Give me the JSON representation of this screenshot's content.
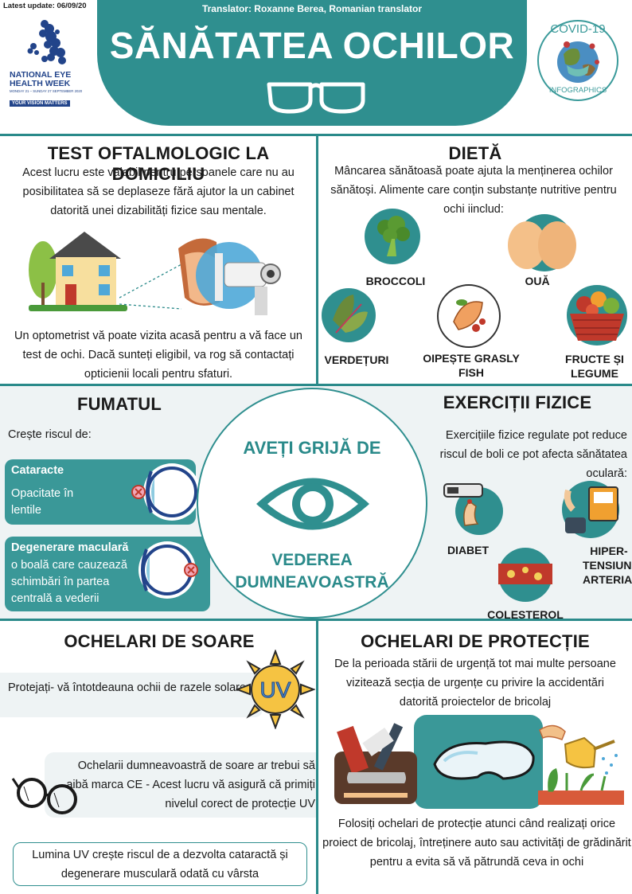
{
  "header": {
    "update": "Latest update: 06/09/20",
    "translator": "Translator: Roxanne Berea, Romanian translator",
    "title": "SĂNĂTATEA OCHILOR",
    "logo_left": {
      "line1": "NATIONAL EYE",
      "line2": "HEALTH WEEK",
      "dates": "MONDAY 21 – SUNDAY 27 SEPTEMBER 2020",
      "tagline": "YOUR VISION MATTERS"
    },
    "logo_right": {
      "top": "COVID-19",
      "bottom": "INFOGRAPHICS"
    }
  },
  "home_test": {
    "title": "TEST OFTALMOLOGIC LA DOMICILIU",
    "text1": "Acest lucru este valabil pentru persoanele  care nu au posibilitatea  să se deplaseze  fără ajutor la un cabinet datorită unei dizabilități fizice sau mentale.",
    "text2": "Un optometrist vă poate vizita acasă pentru  a vă face un test de ochi. Dacă sunteți eligibil,  va rog să contactați opticienii  locali pentru  sfaturi."
  },
  "diet": {
    "title": "DIETĂ",
    "text": "Mâncarea sănătoasă poate ajuta la menținerea ochilor sănătoși. Alimente care conțin substanțe nutritive pentru ochi iinclud:",
    "items": [
      "BROCCOLI",
      "OUĂ",
      "VERDEȚURI",
      "OIPEȘTE GRASLY FISH",
      "FRUCTE ȘI LEGUME"
    ]
  },
  "smoking": {
    "title": "FUMATUL",
    "intro": "Crește riscul de:",
    "cataract_title": "Cataracte",
    "cataract_text": "Opacitate în lentile",
    "macular_title": "Degenerare maculară",
    "macular_text": "o boală care cauzează schimbări în partea centrală a vederii"
  },
  "center": {
    "top": "AVEȚI GRIJĂ DE",
    "bottom": "VEDEREA DUMNEAVOASTRĂ"
  },
  "exercise": {
    "title": "EXERCIȚII FIZICE",
    "text": "Exercițiile fizice regulate pot reduce riscul de boli ce pot afecta sănătatea oculară:",
    "diabetes": "DIABET",
    "hypertension": "HIPER-TENSIUNE ARTERIALĂ",
    "cholesterol": "COLESTEROL"
  },
  "sunglasses": {
    "title": "OCHELARI DE SOARE",
    "text1": "Protejați- vă întotdeauna ochii de razele solare.",
    "uv": "UV",
    "text2": "Ochelarii dumneavoastră de soare ar trebui să aibă marca CE - Acest lucru vă asigură că primiți nivelul corect de protecție UV",
    "text3": "Lumina UV crește riscul de a dezvolta cataractă și degenerare musculară odată cu vârsta"
  },
  "goggles": {
    "title": "OCHELARI DE PROTECȚIE",
    "text1": "De la perioada  stării de urgență tot mai multe persoane vizitează secția de urgențe cu privire la accidentări datorită proiectelor de bricolaj",
    "text2": "Folosiți ochelari de protecție atunci când realizați orice proiect de bricolaj, întreținere auto sau activități de grădinărit pentru  a evita să vă pătrundă ceva in ochi"
  },
  "colors": {
    "teal": "#2f8f8f",
    "soft": "#eef3f4"
  }
}
